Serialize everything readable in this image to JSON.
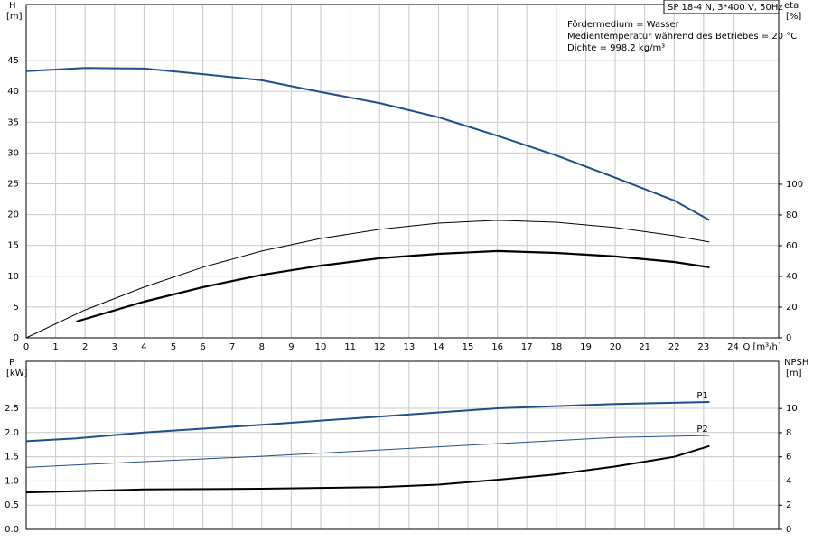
{
  "chart_data": [
    {
      "type": "line",
      "box_title": "SP 18-4 N, 3*400 V, 50Hz",
      "annotations": [
        "Fördermedium = Wasser",
        "Medientemperatur während des Betriebes = 20 °C",
        "Dichte = 998.2 kg/m³"
      ],
      "ylabel": "H",
      "yunit": "[m]",
      "y2label": "eta",
      "y2unit": "[%]",
      "xlabel": "Q [m³/h]",
      "xlim": [
        0,
        25.55
      ],
      "xticks": [
        0,
        1,
        2,
        3,
        4,
        5,
        6,
        7,
        8,
        9,
        10,
        11,
        12,
        13,
        14,
        15,
        16,
        17,
        18,
        19,
        20,
        21,
        22,
        23,
        24
      ],
      "ylim": [
        0,
        54.1
      ],
      "yticks": [
        0,
        5,
        10,
        15,
        20,
        25,
        30,
        35,
        40,
        45
      ],
      "y2lim": [
        0,
        217
      ],
      "y2ticks": [
        0,
        20,
        40,
        60,
        80,
        100
      ],
      "grid": true,
      "series": [
        {
          "color": "#1f4e8c",
          "linewidth": 2,
          "x": [
            0,
            2,
            4,
            6,
            8,
            10,
            12,
            14,
            16,
            18,
            20,
            22,
            23.2
          ],
          "values": [
            43.3,
            43.8,
            43.7,
            42.8,
            41.8,
            39.9,
            38.1,
            35.8,
            32.8,
            29.6,
            26,
            22.3,
            19.1
          ]
        },
        {
          "color": "#000000",
          "linewidth": 1,
          "axis": "y2",
          "x": [
            0,
            2,
            4,
            6,
            8,
            10,
            12,
            14,
            16,
            18,
            20,
            22,
            23.2
          ],
          "values": [
            0,
            18.2,
            33,
            46,
            56.5,
            64.7,
            70.6,
            74.7,
            76.5,
            75.3,
            71.8,
            66.5,
            62.4
          ]
        },
        {
          "color": "#000000",
          "linewidth": 2.2,
          "axis": "y2",
          "x": [
            1.7,
            4,
            6,
            8,
            10,
            12,
            14,
            16,
            18,
            20,
            22,
            23.2
          ],
          "values": [
            10.6,
            23.5,
            33,
            41,
            47,
            51.8,
            54.7,
            56.5,
            55.3,
            53,
            49.4,
            45.9
          ]
        }
      ]
    },
    {
      "type": "line",
      "ylabel": "P",
      "yunit": "[kW]",
      "y2label": "NPSH",
      "y2unit": "[m]",
      "ylim": [
        0,
        3.47
      ],
      "yticks": [
        {
          "value": 0,
          "label": "0.0"
        },
        0.5,
        {
          "value": 1,
          "label": "1.0"
        },
        1.5,
        {
          "value": 2,
          "label": "2.0"
        },
        2.5
      ],
      "y2lim": [
        0,
        13.9
      ],
      "y2ticks": [
        0,
        2,
        4,
        6,
        8,
        10
      ],
      "grid": true,
      "series": [
        {
          "label": "P1",
          "color": "#1f4e8c",
          "linewidth": 2,
          "x": [
            0,
            1.7,
            4,
            8,
            12,
            16,
            20,
            23.2
          ],
          "values": [
            1.82,
            1.88,
            2.0,
            2.16,
            2.33,
            2.5,
            2.59,
            2.63
          ]
        },
        {
          "label": "P2",
          "color": "#1f4e8c",
          "linewidth": 1,
          "x": [
            0,
            4,
            8,
            12,
            16,
            20,
            23.2
          ],
          "values": [
            1.28,
            1.4,
            1.51,
            1.64,
            1.77,
            1.9,
            1.94
          ]
        },
        {
          "color": "#000000",
          "linewidth": 2,
          "axis": "y2",
          "x": [
            0,
            4,
            8,
            12,
            14,
            16,
            18,
            20,
            22,
            23.2
          ],
          "values": [
            3.06,
            3.3,
            3.36,
            3.5,
            3.7,
            4.1,
            4.55,
            5.2,
            6.0,
            6.9
          ]
        }
      ]
    }
  ]
}
